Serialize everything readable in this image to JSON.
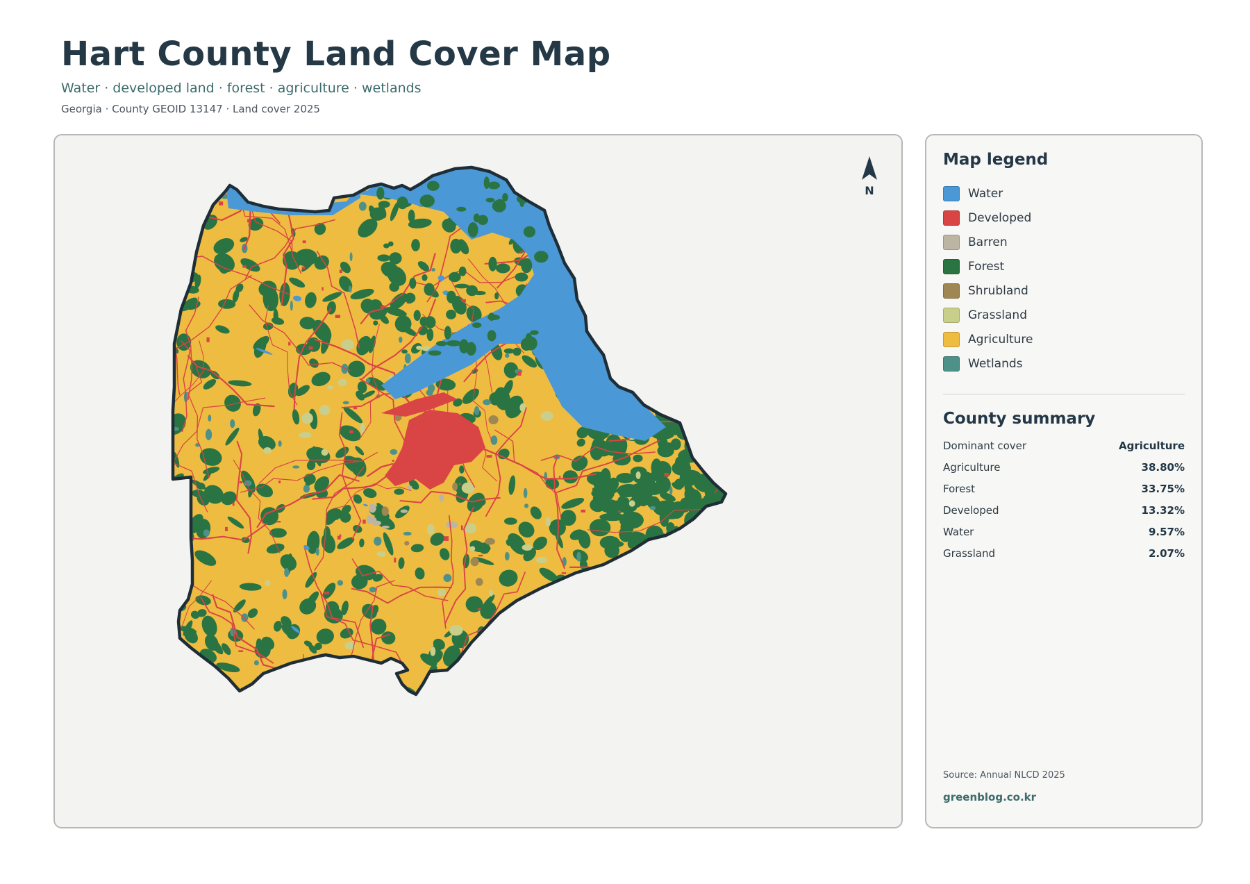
{
  "header": {
    "title": "Hart County Land Cover Map",
    "subtitle": "Water · developed land · forest · agriculture · wetlands",
    "meta": "Georgia · County GEOID 13147 · Land cover 2025"
  },
  "map": {
    "north_label": "N",
    "colors": {
      "water": "#4a98d6",
      "developed": "#d94444",
      "barren": "#bdb5a3",
      "forest": "#2a7443",
      "shrubland": "#9e8752",
      "grassland": "#c9cf8a",
      "agriculture": "#eebc41",
      "wetlands": "#4e9189",
      "outline": "#1e2d36"
    }
  },
  "legend": {
    "heading": "Map legend",
    "items": [
      {
        "label": "Water",
        "color": "#4a98d6"
      },
      {
        "label": "Developed",
        "color": "#d94444"
      },
      {
        "label": "Barren",
        "color": "#bdb5a3"
      },
      {
        "label": "Forest",
        "color": "#2a7443"
      },
      {
        "label": "Shrubland",
        "color": "#9e8752"
      },
      {
        "label": "Grassland",
        "color": "#c9cf8a"
      },
      {
        "label": "Agriculture",
        "color": "#eebc41"
      },
      {
        "label": "Wetlands",
        "color": "#4e9189"
      }
    ]
  },
  "summary": {
    "heading": "County summary",
    "rows": [
      {
        "label": "Dominant cover",
        "value": "Agriculture"
      },
      {
        "label": "Agriculture",
        "value": "38.80%"
      },
      {
        "label": "Forest",
        "value": "33.75%"
      },
      {
        "label": "Developed",
        "value": "13.32%"
      },
      {
        "label": "Water",
        "value": "9.57%"
      },
      {
        "label": "Grassland",
        "value": "2.07%"
      }
    ]
  },
  "footer": {
    "source": "Source: Annual NLCD 2025",
    "site": "greenblog.co.kr"
  }
}
